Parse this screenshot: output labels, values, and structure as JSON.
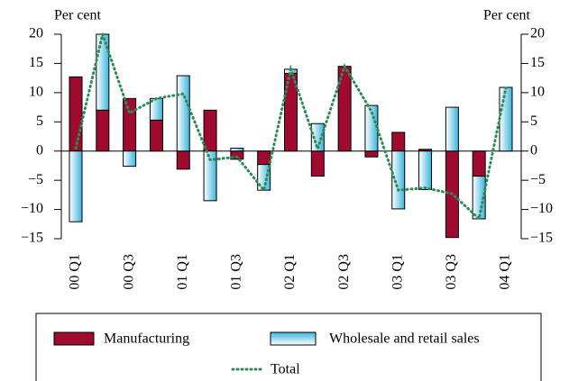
{
  "chart_data": {
    "type": "bar",
    "stacked": true,
    "y_label": "Per cent",
    "y2_label": "Per cent",
    "categories": [
      "00 Q1",
      null,
      "00 Q3",
      null,
      "01 Q1",
      null,
      "01 Q3",
      null,
      "02 Q1",
      null,
      "02 Q3",
      null,
      "03 Q1",
      null,
      "03 Q3",
      null,
      "04 Q1"
    ],
    "series": [
      {
        "name": "Manufacturing",
        "type": "bar",
        "color": "#9e0b2e",
        "values": [
          12.7,
          7,
          9,
          5.3,
          -3.1,
          7,
          -1.4,
          -2.3,
          13.3,
          -4.3,
          14.5,
          -1,
          3.2,
          0.3,
          -14.8,
          -4.3,
          0
        ]
      },
      {
        "name": "Wholesale and retail sales",
        "type": "bar",
        "color": "#3ab4dc",
        "values": [
          -12.1,
          13,
          -2.6,
          3.7,
          12.9,
          -8.5,
          0.5,
          -4.4,
          0.7,
          4.7,
          0,
          7.8,
          -9.9,
          -6.6,
          7.5,
          -7.3,
          10.9
        ]
      },
      {
        "name": "Total",
        "type": "line",
        "color": "#2e8b57",
        "values": [
          0.5,
          20,
          6.5,
          9,
          9.8,
          -1.5,
          -1,
          -6.7,
          14,
          0.4,
          14.5,
          6.8,
          -6.7,
          -6.3,
          -7.3,
          -11.6,
          10.8
        ]
      }
    ],
    "ylim": [
      -15,
      20
    ],
    "yticks": [
      {
        "value": -15,
        "label": "−15"
      },
      {
        "value": -10,
        "label": "−10"
      },
      {
        "value": -5,
        "label": "−5"
      },
      0,
      5,
      10,
      15,
      20
    ],
    "y2lim": [
      -15,
      20
    ],
    "y2ticks": [
      {
        "value": -15,
        "label": "−15"
      },
      {
        "value": -10,
        "label": "−10"
      },
      {
        "value": -5,
        "label": "−5"
      },
      0,
      5,
      10,
      15,
      20
    ]
  }
}
